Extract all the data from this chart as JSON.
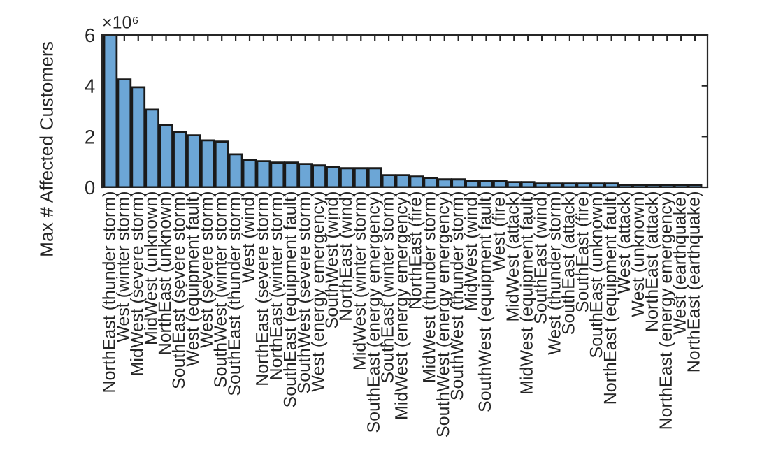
{
  "chart_data": {
    "type": "bar",
    "ylabel": "Max # Affected Customers",
    "categories": [
      "NorthEast (thunder storm)",
      "West (winter storm)",
      "MidWest (severe storm)",
      "MidWest (unknown)",
      "NorthEast (unknown)",
      "SouthEast (severe storm)",
      "West (equipment fault)",
      "West (severe storm)",
      "SouthWest (winter storm)",
      "SouthEast (thunder storm)",
      "West (wind)",
      "NorthEast (severe storm)",
      "NorthEast (winter storm)",
      "SouthEast (equipment fault)",
      "SouthWest (severe storm)",
      "West (energy emergency)",
      "SouthWest (wind)",
      "NorthEast (wind)",
      "MidWest (winter storm)",
      "SouthEast (energy emergency)",
      "SouthEast (winter storm)",
      "MidWest (energy emergency)",
      "NorthEast (fire)",
      "MidWest (thunder storm)",
      "SouthWest (energy emergency)",
      "SouthWest (thunder storm)",
      "MidWest (wind)",
      "SouthWest (equipment fault)",
      "West (fire)",
      "MidWest (attack)",
      "MidWest (equipment fault)",
      "SouthEast (wind)",
      "West (thunder storm)",
      "SouthEast (attack)",
      "SouthEast (fire)",
      "SouthEast (unknown)",
      "NorthEast (equipment fault)",
      "West (attack)",
      "West (unknown)",
      "NorthEast (attack)",
      "NorthEast (energy emergency)",
      "West (earthquake)",
      "NorthEast (earthquake)"
    ],
    "series": [
      {
        "color": "#6ca6d6",
        "values": [
          6.0,
          4.25,
          3.94,
          3.06,
          2.46,
          2.18,
          2.05,
          1.85,
          1.8,
          1.3,
          1.08,
          1.03,
          0.97,
          0.97,
          0.92,
          0.86,
          0.81,
          0.75,
          0.75,
          0.75,
          0.48,
          0.48,
          0.42,
          0.37,
          0.31,
          0.31,
          0.26,
          0.26,
          0.26,
          0.2,
          0.2,
          0.15,
          0.15,
          0.15,
          0.15,
          0.15,
          0.15,
          0.09,
          0.09,
          0.09,
          0.09,
          0.09,
          0.09
        ]
      }
    ],
    "ylim": [
      0,
      6
    ],
    "yticks": [
      0,
      2,
      4,
      6
    ],
    "annotations": [
      "×10⁶"
    ],
    "grid": false,
    "legend": false
  }
}
